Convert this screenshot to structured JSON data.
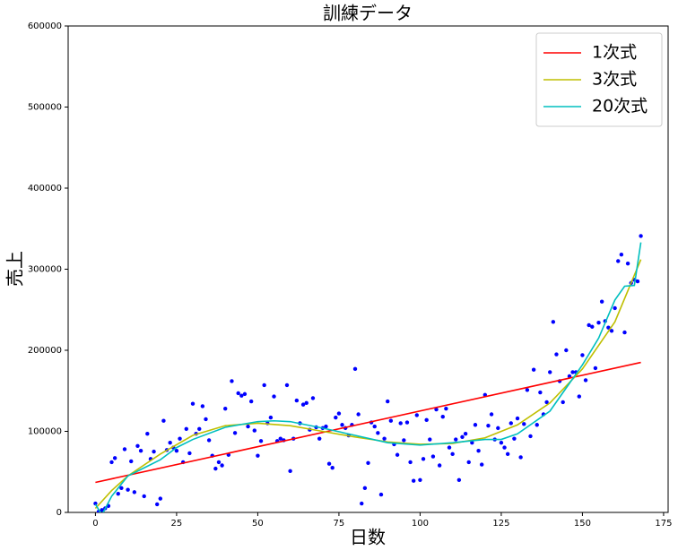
{
  "chart_data": {
    "type": "line",
    "title": "訓練データ",
    "x_label": "日数",
    "y_label": "売上",
    "xlim": [
      -8.4,
      176.4
    ],
    "ylim": [
      0,
      600000
    ],
    "xticks": [
      0,
      25,
      50,
      75,
      100,
      125,
      150,
      175
    ],
    "yticks": [
      0,
      100000,
      200000,
      300000,
      400000,
      500000,
      600000
    ],
    "legend": "upper right",
    "series": [
      {
        "style": "scatter",
        "color": "#0000ff",
        "x": [
          0,
          1,
          2,
          3,
          4,
          5,
          6,
          7,
          8,
          9,
          10,
          11,
          12,
          13,
          14,
          15,
          16,
          17,
          18,
          19,
          20,
          21,
          22,
          23,
          24,
          25,
          26,
          27,
          28,
          29,
          30,
          31,
          32,
          33,
          34,
          35,
          36,
          37,
          38,
          39,
          40,
          41,
          42,
          43,
          44,
          45,
          46,
          47,
          48,
          49,
          50,
          51,
          52,
          53,
          54,
          55,
          56,
          57,
          58,
          59,
          60,
          61,
          62,
          63,
          64,
          65,
          66,
          67,
          68,
          69,
          70,
          71,
          72,
          73,
          74,
          75,
          76,
          77,
          78,
          79,
          80,
          81,
          82,
          83,
          84,
          85,
          86,
          87,
          88,
          89,
          90,
          91,
          92,
          93,
          94,
          95,
          96,
          97,
          98,
          99,
          100,
          101,
          102,
          103,
          104,
          105,
          106,
          107,
          108,
          109,
          110,
          111,
          112,
          113,
          114,
          115,
          116,
          117,
          118,
          119,
          120,
          121,
          122,
          123,
          124,
          125,
          126,
          127,
          128,
          129,
          130,
          131,
          132,
          133,
          134,
          135,
          136,
          137,
          138,
          139,
          140,
          141,
          142,
          143,
          144,
          145,
          146,
          147,
          148,
          149,
          150,
          151,
          152,
          153,
          154,
          155,
          156,
          157,
          158,
          159,
          160,
          161,
          162,
          163,
          164,
          165,
          166,
          167,
          168
        ],
        "values": [
          11000,
          1000,
          3000,
          5000,
          8000,
          62000,
          67000,
          23000,
          30000,
          78000,
          28000,
          63000,
          25000,
          82000,
          76000,
          20000,
          97000,
          66000,
          75000,
          10000,
          17000,
          113000,
          77000,
          86000,
          80000,
          76000,
          91000,
          62000,
          103000,
          73000,
          134000,
          97000,
          103000,
          131000,
          115000,
          89000,
          70000,
          54000,
          62000,
          58000,
          128000,
          71000,
          162000,
          98000,
          147000,
          144000,
          146000,
          106000,
          137000,
          101000,
          70000,
          88000,
          157000,
          110000,
          117000,
          143000,
          88000,
          91000,
          89000,
          157000,
          51000,
          91000,
          138000,
          110000,
          133000,
          135000,
          102000,
          141000,
          105000,
          91000,
          104000,
          106000,
          60000,
          55000,
          117000,
          122000,
          108000,
          104000,
          95000,
          108000,
          177000,
          121000,
          11000,
          30000,
          61000,
          111000,
          106000,
          98000,
          22000,
          91000,
          137000,
          113000,
          84000,
          71000,
          110000,
          89000,
          111000,
          62000,
          39000,
          120000,
          40000,
          66000,
          114000,
          90000,
          69000,
          127000,
          58000,
          118000,
          128000,
          80000,
          72000,
          90000,
          40000,
          93000,
          97000,
          62000,
          86000,
          108000,
          76000,
          59000,
          145000,
          107000,
          121000,
          90000,
          104000,
          86000,
          80000,
          72000,
          110000,
          91000,
          116000,
          68000,
          109000,
          151000,
          94000,
          176000,
          108000,
          148000,
          121000,
          136000,
          173000,
          235000,
          195000,
          162000,
          136000,
          200000,
          168000,
          173000,
          173000,
          143000,
          194000,
          163000,
          231000,
          229000,
          178000,
          234000,
          260000,
          236000,
          228000,
          224000,
          252000,
          310000,
          318000,
          222000,
          307000,
          283000,
          287000,
          285000,
          341000
        ]
      },
      {
        "style": "line",
        "name": "1次式",
        "color": "#ff0000",
        "x": [
          0,
          168
        ],
        "values": [
          37000,
          185000
        ]
      },
      {
        "style": "line",
        "name": "3次式",
        "color": "#bfbf00",
        "x": [
          0,
          5,
          10,
          20,
          30,
          40,
          50,
          60,
          70,
          80,
          90,
          100,
          110,
          120,
          130,
          140,
          150,
          160,
          168
        ],
        "values": [
          5000,
          27000,
          45000,
          72000,
          95000,
          107000,
          110000,
          107000,
          100000,
          93000,
          87000,
          84000,
          85000,
          92000,
          108000,
          135000,
          177000,
          235000,
          312000
        ]
      },
      {
        "style": "line",
        "name": "20次式",
        "color": "#00bfbf",
        "x": [
          0,
          2,
          5,
          10,
          15,
          20,
          25,
          30,
          40,
          50,
          55,
          60,
          70,
          80,
          90,
          100,
          110,
          120,
          125,
          130,
          140,
          150,
          155,
          160,
          163,
          166,
          168
        ],
        "values": [
          10000,
          -3000,
          20000,
          45000,
          55000,
          65000,
          80000,
          90000,
          105000,
          112000,
          113000,
          112000,
          104000,
          95000,
          86000,
          83000,
          86000,
          90000,
          90000,
          97000,
          125000,
          182000,
          215000,
          262000,
          279000,
          280000,
          333000
        ]
      }
    ]
  }
}
